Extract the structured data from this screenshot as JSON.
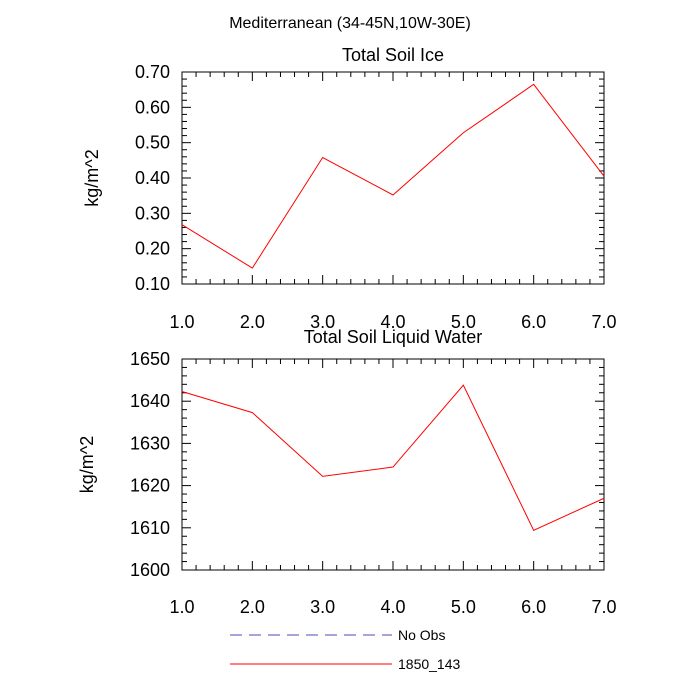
{
  "figure": {
    "suptitle": "Mediterranean (34-45N,10W-30E)",
    "legend": [
      {
        "label": "No Obs",
        "color": "#4b4bb4",
        "style": "dashed"
      },
      {
        "label": "1850_143",
        "color": "#ff0000",
        "style": "solid"
      }
    ]
  },
  "chart_data": [
    {
      "type": "line",
      "title": "Total Soil Ice",
      "ylabel": "kg/m^2",
      "xlabel": "",
      "xlim": [
        1,
        7
      ],
      "ylim": [
        0.1,
        0.7
      ],
      "xticks": [
        "1.0",
        "2.0",
        "3.0",
        "4.0",
        "5.0",
        "6.0",
        "7.0"
      ],
      "yticks": [
        "0.10",
        "0.20",
        "0.30",
        "0.40",
        "0.50",
        "0.60",
        "0.70"
      ],
      "series": [
        {
          "name": "1850_143",
          "color": "#ff0000",
          "x": [
            1,
            2,
            3,
            4,
            5,
            6,
            7
          ],
          "values": [
            0.268,
            0.145,
            0.458,
            0.352,
            0.528,
            0.665,
            0.405
          ]
        }
      ]
    },
    {
      "type": "line",
      "title": "Total Soil Liquid Water",
      "ylabel": "kg/m^2",
      "xlabel": "",
      "xlim": [
        1,
        7
      ],
      "ylim": [
        1600,
        1650
      ],
      "xticks": [
        "1.0",
        "2.0",
        "3.0",
        "4.0",
        "5.0",
        "6.0",
        "7.0"
      ],
      "yticks": [
        "1600",
        "1610",
        "1620",
        "1630",
        "1640",
        "1650"
      ],
      "series": [
        {
          "name": "1850_143",
          "color": "#ff0000",
          "x": [
            1,
            2,
            3,
            4,
            5,
            6,
            7
          ],
          "values": [
            1642.3,
            1637.3,
            1622.2,
            1624.4,
            1643.8,
            1609.4,
            1617.0
          ]
        }
      ]
    }
  ]
}
